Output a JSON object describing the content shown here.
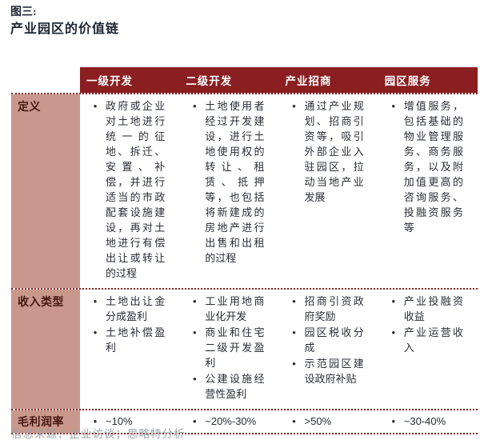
{
  "figure": {
    "label": "图三:",
    "title": "产业园区的价值链"
  },
  "bullet": "•",
  "colors": {
    "header_bg": "#8B1E20",
    "label_bg": "#C9978C",
    "label_text": "#46180F",
    "body_text": "#2A2D35",
    "divider_dotted": "#8B1E20",
    "title_text": "#1F2733",
    "source_text": "#9EA2A6"
  },
  "table": {
    "columns": [
      "一级开发",
      "二级开发",
      "产业招商",
      "园区服务"
    ],
    "rows": [
      {
        "label": "定义",
        "cells": [
          [
            "政府或企业对土地进行统一的征地、拆迁、安置、补偿，并进行适当的市政配套设施建设，再对土地进行有偿出让或转让的过程"
          ],
          [
            "土地使用者经过开发建设，进行土地使用权的转让、租赁、抵押等，也包括将新建成的房地产进行出售和出租的过程"
          ],
          [
            "通过产业规划、招商引资等，吸引外部企业入驻园区，拉动当地产业发展"
          ],
          [
            "增值服务，包括基础的物业管理服务、商务服务，以及附加值更高的咨询服务、投融资服务等"
          ]
        ]
      },
      {
        "label": "收入类型",
        "cells": [
          [
            "土地出让金分成盈利",
            "土地补偿盈利"
          ],
          [
            "工业用地商业化开发",
            "商业和住宅二级开发盈利",
            "公建设施经营性盈利"
          ],
          [
            "招商引资政府奖励",
            "园区税收分成",
            "示范园区建设政府补贴"
          ],
          [
            "产业投融资收益",
            "产业运营收入"
          ]
        ]
      },
      {
        "label": "毛利润率",
        "cells": [
          [
            "~10%"
          ],
          [
            "~20%-30%"
          ],
          [
            ">50%"
          ],
          [
            "~30-40%"
          ]
        ]
      }
    ]
  },
  "source": "信息来源：企业访谈；思略特分析"
}
